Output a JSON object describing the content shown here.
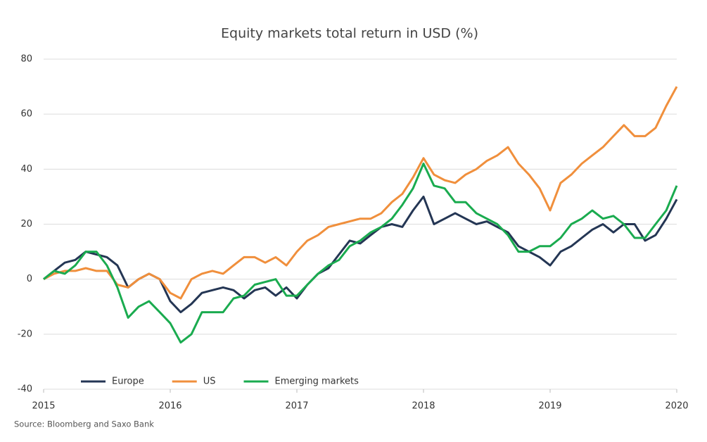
{
  "chart_data": {
    "type": "line",
    "title": "Equity markets total return in USD (%)",
    "source": "Source: Bloomberg and Saxo Bank",
    "x": [
      2015,
      2015.083,
      2015.167,
      2015.25,
      2015.333,
      2015.417,
      2015.5,
      2015.583,
      2015.667,
      2015.75,
      2015.833,
      2015.917,
      2016,
      2016.083,
      2016.167,
      2016.25,
      2016.333,
      2016.417,
      2016.5,
      2016.583,
      2016.667,
      2016.75,
      2016.833,
      2016.917,
      2017,
      2017.083,
      2017.167,
      2017.25,
      2017.333,
      2017.417,
      2017.5,
      2017.583,
      2017.667,
      2017.75,
      2017.833,
      2017.917,
      2018,
      2018.083,
      2018.167,
      2018.25,
      2018.333,
      2018.417,
      2018.5,
      2018.583,
      2018.667,
      2018.75,
      2018.833,
      2018.917,
      2019,
      2019.083,
      2019.167,
      2019.25,
      2019.333,
      2019.417,
      2019.5,
      2019.583,
      2019.667,
      2019.75,
      2019.833,
      2019.917,
      2020
    ],
    "series": [
      {
        "name": "Europe",
        "color": "#243654",
        "values": [
          0,
          3,
          6,
          7,
          10,
          9,
          8,
          5,
          -3,
          0,
          2,
          0,
          -8,
          -12,
          -9,
          -5,
          -4,
          -3,
          -4,
          -7,
          -4,
          -3,
          -6,
          -3,
          -7,
          -2,
          2,
          4,
          9,
          14,
          13,
          16,
          19,
          20,
          19,
          25,
          30,
          20,
          22,
          24,
          22,
          20,
          21,
          19,
          17,
          12,
          10,
          8,
          5,
          10,
          12,
          15,
          18,
          20,
          17,
          20,
          20,
          14,
          16,
          22,
          29
        ]
      },
      {
        "name": "US",
        "color": "#f08f3c",
        "values": [
          0,
          2,
          3,
          3,
          4,
          3,
          3,
          -2,
          -3,
          0,
          2,
          0,
          -5,
          -7,
          0,
          2,
          3,
          2,
          5,
          8,
          8,
          6,
          8,
          5,
          10,
          14,
          16,
          19,
          20,
          21,
          22,
          22,
          24,
          28,
          31,
          37,
          44,
          38,
          36,
          35,
          38,
          40,
          43,
          45,
          48,
          42,
          38,
          33,
          25,
          35,
          38,
          42,
          45,
          48,
          52,
          56,
          52,
          52,
          55,
          63,
          70
        ]
      },
      {
        "name": "Emerging markets",
        "color": "#1aab4f",
        "values": [
          0,
          3,
          2,
          5,
          10,
          10,
          5,
          -3,
          -14,
          -10,
          -8,
          -12,
          -16,
          -23,
          -20,
          -12,
          -12,
          -12,
          -7,
          -6,
          -2,
          -1,
          0,
          -6,
          -6,
          -2,
          2,
          5,
          7,
          12,
          14,
          17,
          19,
          22,
          27,
          33,
          42,
          34,
          33,
          28,
          28,
          24,
          22,
          20,
          16,
          10,
          10,
          12,
          12,
          15,
          20,
          22,
          25,
          22,
          23,
          20,
          15,
          15,
          20,
          25,
          34
        ]
      }
    ],
    "xlim": [
      2015,
      2020
    ],
    "xticks": [
      2015,
      2016,
      2017,
      2018,
      2019,
      2020
    ],
    "ylim": [
      -40,
      80
    ],
    "yticks": [
      -40,
      -20,
      0,
      20,
      40,
      60,
      80
    ],
    "grid": true,
    "legend": "lower left"
  }
}
